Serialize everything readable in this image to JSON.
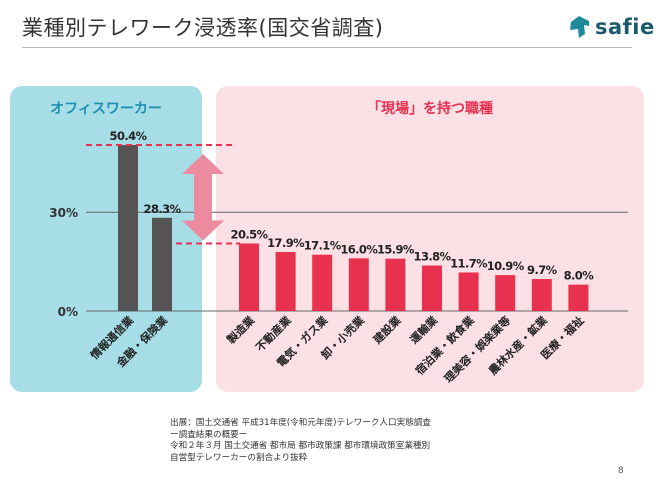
{
  "header": {
    "title": "業種別テレワーク浸透率(国交省調査)",
    "logo_text": "safie"
  },
  "chart_data": {
    "type": "bar",
    "groups": [
      {
        "label": "オフィスワーカー",
        "color": "#555555",
        "categories": [
          "情報通信業",
          "金融・保険業"
        ],
        "values": [
          50.4,
          28.3
        ],
        "value_labels": [
          "50.4%",
          "28.3%"
        ]
      },
      {
        "label": "「現場」を持つ職種",
        "color": "#e8304f",
        "categories": [
          "製造業",
          "不動産業",
          "電気・ガス業",
          "卸・小売業",
          "建設業",
          "運輸業",
          "宿泊業・飲食業",
          "理美容・娯楽業等",
          "農林水産・鉱業",
          "医療・福祉"
        ],
        "values": [
          20.5,
          17.9,
          17.1,
          16.0,
          15.9,
          13.8,
          11.7,
          10.9,
          9.7,
          8.0
        ],
        "value_labels": [
          "20.5%",
          "17.9%",
          "17.1%",
          "16.0%",
          "15.9%",
          "13.8%",
          "11.7%",
          "10.9%",
          "9.7%",
          "8.0%"
        ]
      }
    ],
    "y_ticks": [
      {
        "value": 30,
        "label": "30%"
      },
      {
        "value": 0,
        "label": "0%"
      }
    ],
    "ylim": [
      0,
      50.4
    ],
    "colors": {
      "office_panel": "#a6dde7",
      "office_label": "#1a8fb0",
      "field_panel": "#fbe1e6",
      "field_label": "#e8304f",
      "arrow": "#ec8aa0"
    }
  },
  "source": {
    "lines": [
      "出展：国土交通省 平成31年度(令和元年度)テレワーク人口実態調査",
      "ー調査結果の概要ー",
      "令和２年３月 国土交通省 都市局 都市政策課 都市環境政策室業種別",
      "自営型テレワーカーの割合より抜粋"
    ]
  },
  "page_number": "8"
}
